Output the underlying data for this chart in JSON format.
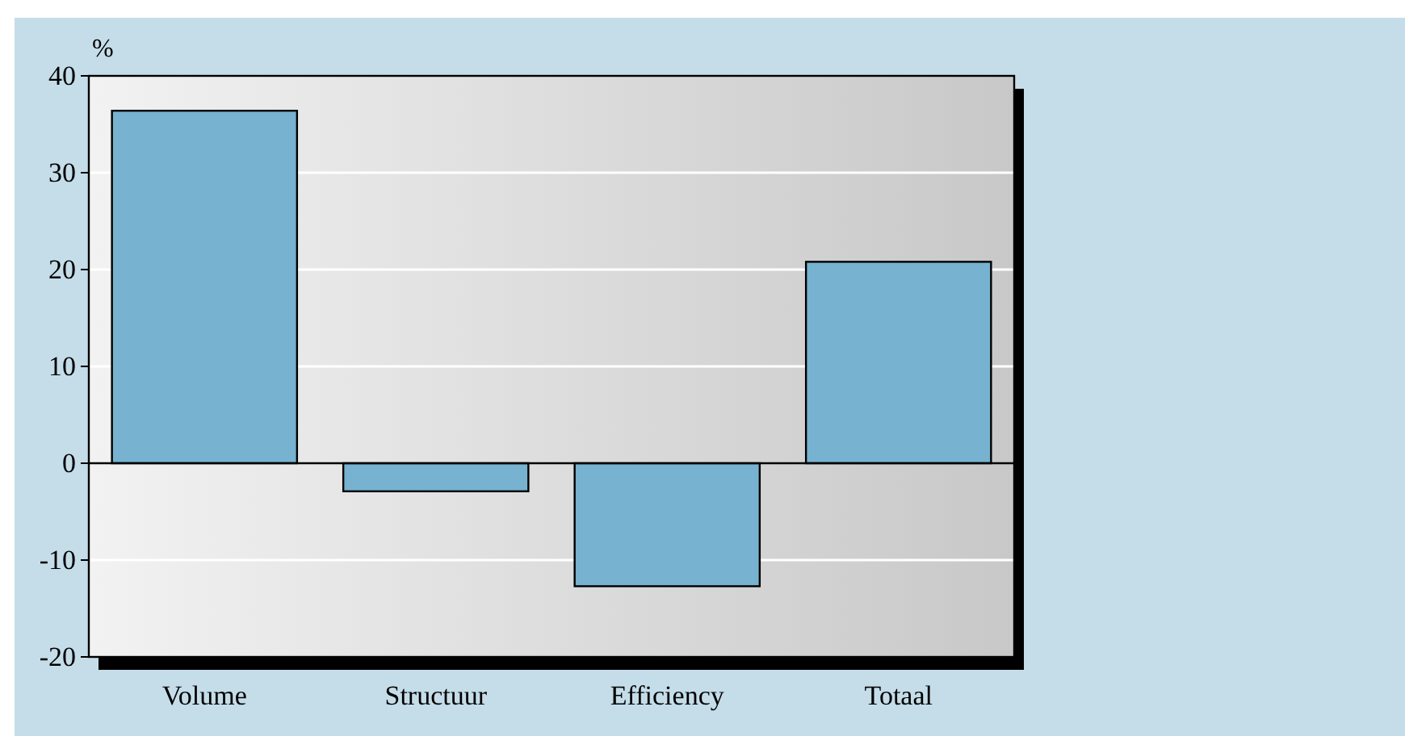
{
  "chart_data": {
    "type": "bar",
    "ylabel": "%",
    "categories": [
      "Volume",
      "Structuur",
      "Efficiency",
      "Totaal"
    ],
    "values": [
      36.4,
      -2.9,
      -12.7,
      20.8
    ],
    "color": "#77b2d0",
    "ylim": [
      -20,
      40
    ],
    "yticks": [
      -20,
      -10,
      0,
      10,
      20,
      30,
      40
    ],
    "grid": "y"
  }
}
